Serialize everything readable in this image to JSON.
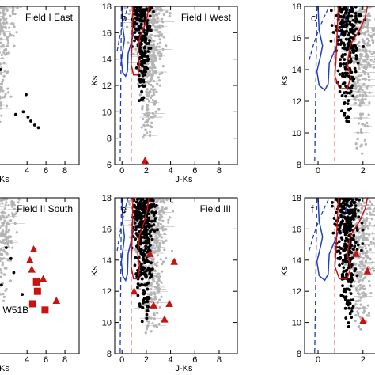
{
  "chart_data": [
    {
      "panel": "a",
      "type": "scatter",
      "title": "Field I East",
      "letter": "",
      "xlabel": "J-Ks",
      "ylabel": "",
      "xlim": [
        -2.2,
        9.5
      ],
      "ylim": [
        18,
        6
      ],
      "xticks": [
        "4",
        "6",
        "8"
      ],
      "xtick_values": [
        4,
        6,
        8
      ],
      "yticks": [],
      "ytick_values": [],
      "show_isochrones": false,
      "field_points": {
        "n": 240,
        "x_center": 1.2,
        "x_spread": 2.0,
        "y_min": 9.2,
        "y_max": 18
      },
      "member_points": [
        [
          4.4,
          9.3
        ],
        [
          4.1,
          9.6
        ],
        [
          3.6,
          10.0
        ],
        [
          2.8,
          9.8
        ],
        [
          4.8,
          9.0
        ],
        [
          5.2,
          8.8
        ],
        [
          3.9,
          11.3
        ],
        [
          1.2,
          13.2
        ],
        [
          -0.3,
          13.6
        ],
        [
          -0.1,
          14.8
        ]
      ],
      "special_markers": []
    },
    {
      "panel": "b",
      "type": "scatter",
      "title": "Field I West",
      "letter": "b",
      "xlabel": "J-Ks",
      "ylabel": "Ks",
      "xlim": [
        -0.6,
        9.5
      ],
      "ylim": [
        18,
        6
      ],
      "xticks": [
        "0",
        "2",
        "4",
        "6",
        "8"
      ],
      "xtick_values": [
        0,
        2,
        4,
        6,
        8
      ],
      "yticks": [
        "6",
        "8",
        "10",
        "12",
        "14",
        "16",
        "18"
      ],
      "ytick_values": [
        6,
        8,
        10,
        12,
        14,
        16,
        18
      ],
      "show_isochrones": true,
      "field_points": {
        "n": 420,
        "x_center": 2.2,
        "x_spread": 1.6,
        "y_min": 8.0,
        "y_max": 18
      },
      "member_points": {
        "n": 200,
        "x_center": 1.9,
        "x_spread": 1.1,
        "y_min": 10.5,
        "y_max": 18
      },
      "special_markers": [
        {
          "shape": "triangle",
          "x": 1.9,
          "y": 6.3
        }
      ]
    },
    {
      "panel": "c",
      "type": "scatter",
      "title": "",
      "letter": "c",
      "xlabel": "",
      "ylabel": "Ks",
      "xlim": [
        -0.6,
        3.1
      ],
      "ylim": [
        18,
        8
      ],
      "xticks": [
        "0",
        "2"
      ],
      "xtick_values": [
        0,
        2
      ],
      "yticks": [
        "8",
        "10",
        "12",
        "14",
        "16",
        "18"
      ],
      "ytick_values": [
        8,
        10,
        12,
        14,
        16,
        18
      ],
      "show_isochrones": true,
      "field_points": {
        "n": 300,
        "x_center": 1.9,
        "x_spread": 0.9,
        "y_min": 8.5,
        "y_max": 18
      },
      "member_points": {
        "n": 240,
        "x_center": 1.5,
        "x_spread": 0.8,
        "y_min": 10.0,
        "y_max": 18
      },
      "special_markers": []
    },
    {
      "panel": "d",
      "type": "scatter",
      "title": "Field II South",
      "letter": "",
      "xlabel": "J-Ks",
      "ylabel": "",
      "xlim": [
        -2.2,
        9.5
      ],
      "ylim": [
        18,
        8
      ],
      "xticks": [
        "4",
        "6",
        "8"
      ],
      "xtick_values": [
        4,
        6,
        8
      ],
      "yticks": [],
      "ytick_values": [],
      "show_isochrones": false,
      "field_points": {
        "n": 200,
        "x_center": 1.3,
        "x_spread": 2.0,
        "y_min": 11.0,
        "y_max": 18
      },
      "member_points": [
        [
          0.6,
          11.0
        ],
        [
          3.5,
          11.8
        ],
        [
          1.3,
          12.4
        ],
        [
          2.6,
          13.2
        ],
        [
          2.3,
          14.1
        ],
        [
          1.8,
          14.8
        ]
      ],
      "special_markers": [
        {
          "shape": "square",
          "x": 4.6,
          "y": 11.2
        },
        {
          "shape": "square",
          "x": 5.9,
          "y": 10.8
        },
        {
          "shape": "square",
          "x": 5.1,
          "y": 12.0
        },
        {
          "shape": "square",
          "x": 5.0,
          "y": 12.6
        },
        {
          "shape": "triangle",
          "x": 7.1,
          "y": 11.4
        },
        {
          "shape": "triangle",
          "x": 5.7,
          "y": 12.8
        },
        {
          "shape": "triangle",
          "x": 4.5,
          "y": 13.4
        },
        {
          "shape": "triangle",
          "x": 4.3,
          "y": 14.0
        },
        {
          "shape": "triangle",
          "x": 4.7,
          "y": 14.7
        }
      ],
      "annotation": {
        "text": "W51B",
        "x": 2.8,
        "y": 10.6
      }
    },
    {
      "panel": "e",
      "type": "scatter",
      "title": "Field III",
      "letter": "e",
      "xlabel": "J-Ks",
      "ylabel": "Ks",
      "xlim": [
        -0.6,
        9.5
      ],
      "ylim": [
        18,
        8
      ],
      "xticks": [
        "0",
        "2",
        "4",
        "6",
        "8"
      ],
      "xtick_values": [
        0,
        2,
        4,
        6,
        8
      ],
      "yticks": [
        "8",
        "10",
        "12",
        "14",
        "16",
        "18"
      ],
      "ytick_values": [
        8,
        10,
        12,
        14,
        16,
        18
      ],
      "show_isochrones": true,
      "field_points": {
        "n": 460,
        "x_center": 2.4,
        "x_spread": 1.8,
        "y_min": 9.0,
        "y_max": 18
      },
      "member_points": {
        "n": 320,
        "x_center": 2.0,
        "x_spread": 1.2,
        "y_min": 9.0,
        "y_max": 18
      },
      "special_markers": [
        {
          "shape": "triangle",
          "x": 3.5,
          "y": 10.2
        },
        {
          "shape": "triangle",
          "x": 2.6,
          "y": 11.1
        },
        {
          "shape": "triangle",
          "x": 3.9,
          "y": 11.2
        },
        {
          "shape": "triangle",
          "x": 1.0,
          "y": 12.0
        },
        {
          "shape": "triangle",
          "x": 2.3,
          "y": 14.4
        },
        {
          "shape": "triangle",
          "x": 4.3,
          "y": 13.9
        }
      ]
    },
    {
      "panel": "f",
      "type": "scatter",
      "title": "",
      "letter": "f",
      "xlabel": "",
      "ylabel": "Ks",
      "xlim": [
        -0.6,
        3.1
      ],
      "ylim": [
        18,
        8
      ],
      "xticks": [
        "0",
        "2"
      ],
      "xtick_values": [
        0,
        2
      ],
      "yticks": [
        "8",
        "10",
        "12",
        "14",
        "16",
        "18"
      ],
      "ytick_values": [
        8,
        10,
        12,
        14,
        16,
        18
      ],
      "show_isochrones": true,
      "field_points": {
        "n": 320,
        "x_center": 1.9,
        "x_spread": 0.9,
        "y_min": 9.0,
        "y_max": 18
      },
      "member_points": {
        "n": 300,
        "x_center": 1.5,
        "x_spread": 0.8,
        "y_min": 9.0,
        "y_max": 18
      },
      "special_markers": [
        {
          "shape": "triangle",
          "x": 2.0,
          "y": 10.1
        },
        {
          "shape": "triangle",
          "x": 2.2,
          "y": 13.3
        },
        {
          "shape": "triangle",
          "x": 1.7,
          "y": 14.4
        }
      ]
    }
  ],
  "colors": {
    "field_stars": "#b4b4b4",
    "members": "#000000",
    "special": "#cc1111",
    "blue_isochrone": "#1f3fbf",
    "red_isochrone": "#cc1111",
    "axes": "#000000"
  }
}
